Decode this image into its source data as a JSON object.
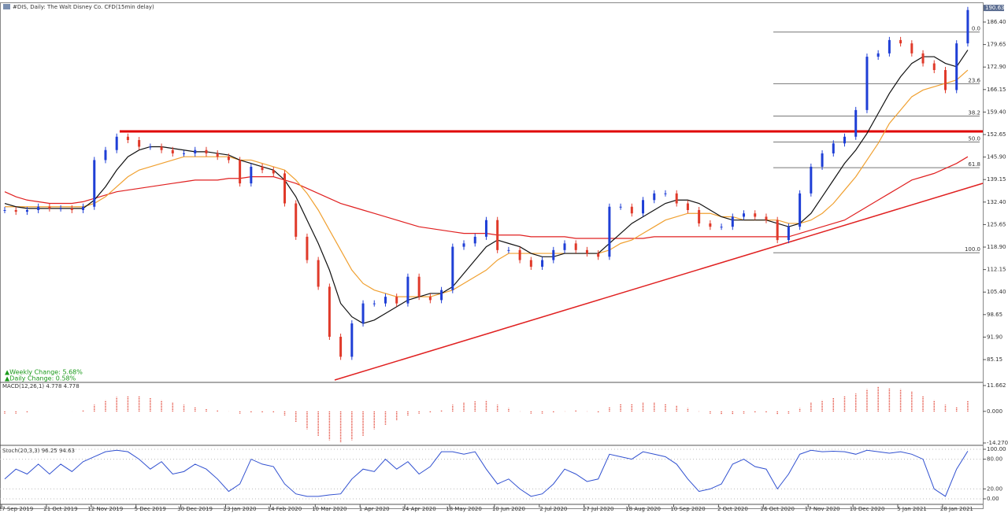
{
  "chart_data": {
    "type": "candlestick",
    "title": "#DIS, Daily: The Walt Disney Co. CFD(15min delay)",
    "last_price": {
      "value": 190.63,
      "label": "190.63"
    },
    "weekly_change": "▲Weekly Change: 5.68%",
    "daily_change": "▲Daily Change: 0.58%",
    "up_color": "#1f3fd6",
    "down_color": "#e03a2a",
    "x_labels": [
      "27 Sep 2019",
      "21 Oct 2019",
      "12 Nov 2019",
      "5 Dec 2019",
      "30 Dec 2019",
      "23 Jan 2020",
      "14 Feb 2020",
      "10 Mar 2020",
      "1 Apr 2020",
      "24 Apr 2020",
      "18 May 2020",
      "10 Jun 2020",
      "2 Jul 2020",
      "27 Jul 2020",
      "18 Aug 2020",
      "10 Sep 2020",
      "2 Oct 2020",
      "26 Oct 2020",
      "17 Nov 2020",
      "10 Dec 2020",
      "5 Jan 2021",
      "28 Jan 2021"
    ],
    "close": [
      130,
      129.5,
      130,
      131,
      130.5,
      130.5,
      130,
      131,
      145,
      148,
      152,
      151,
      149,
      149,
      148,
      147,
      147,
      148,
      147,
      146,
      145,
      138,
      143,
      142,
      141,
      132,
      122,
      115,
      107,
      92,
      86,
      96,
      102,
      102,
      104,
      102,
      110,
      104,
      103,
      106,
      119,
      120,
      122,
      127,
      118,
      118,
      115,
      113,
      115,
      118,
      120,
      118,
      117,
      116,
      131,
      131,
      129,
      133,
      135,
      135,
      132,
      130,
      126,
      125,
      125,
      128,
      129,
      128,
      127,
      121,
      125,
      135,
      143,
      147,
      150,
      152,
      160,
      176,
      177,
      181,
      180,
      177,
      174,
      172,
      166,
      180,
      190
    ],
    "series": [
      {
        "name": "MA slow",
        "color": "#e02020",
        "values": [
          135.5,
          134,
          133,
          132.5,
          132,
          132,
          132,
          132.5,
          133.5,
          134.5,
          135.5,
          136,
          136.5,
          137,
          137.5,
          138,
          138.5,
          139,
          139,
          139,
          139.5,
          139.5,
          140,
          140,
          140,
          139,
          138,
          136.5,
          135,
          133.5,
          132,
          131,
          130,
          129,
          128,
          127,
          126,
          125,
          124.5,
          124,
          123.5,
          123,
          123,
          123,
          122.5,
          122.5,
          122.5,
          122,
          122,
          122,
          122,
          121.5,
          121.5,
          121.5,
          121.5,
          121.5,
          121.5,
          121.5,
          122,
          122,
          122,
          122,
          122,
          122,
          122,
          122,
          122,
          122,
          122,
          122,
          122,
          123,
          124,
          125,
          126,
          127,
          129,
          131,
          133,
          135,
          137,
          139,
          140,
          141,
          142.5,
          144,
          146
        ]
      },
      {
        "name": "MA mid",
        "color": "#f0a030",
        "values": [
          131,
          131,
          131,
          131,
          131,
          131,
          131,
          131,
          132,
          134,
          137,
          140,
          142,
          143,
          144,
          145,
          146,
          146,
          146,
          146,
          146,
          145,
          145,
          144,
          143,
          142,
          139,
          135,
          130,
          124,
          118,
          112,
          108,
          106,
          105,
          104,
          104,
          104,
          104,
          105,
          106,
          108,
          110,
          112,
          115,
          117,
          117,
          117,
          117,
          117,
          117,
          117,
          117,
          117,
          118,
          120,
          121,
          123,
          125,
          127,
          128,
          129,
          129,
          129,
          128,
          128,
          127,
          127,
          127,
          127,
          126,
          126,
          127,
          129,
          132,
          136,
          140,
          145,
          150,
          156,
          160,
          164,
          166,
          167,
          168,
          169,
          172
        ]
      },
      {
        "name": "MA fast",
        "color": "#111111",
        "values": [
          132,
          131,
          130.5,
          130.5,
          130.5,
          130.5,
          130.5,
          130.5,
          133,
          137,
          142,
          146,
          148,
          149,
          149,
          148.5,
          148,
          147.5,
          147.5,
          147,
          146.5,
          145,
          144,
          143,
          142,
          139,
          134,
          127,
          120,
          112,
          102,
          98,
          96,
          97,
          99,
          101,
          103,
          104,
          105,
          105,
          107,
          111,
          115,
          119,
          121,
          120,
          119,
          117,
          116,
          116,
          117,
          117,
          117,
          117,
          120,
          123,
          126,
          128,
          130,
          132,
          133,
          133,
          132,
          130,
          128,
          127,
          127,
          127,
          127,
          126,
          125,
          126,
          129,
          134,
          139,
          144,
          148,
          153,
          159,
          165,
          170,
          174,
          176,
          176,
          174,
          173,
          178
        ]
      }
    ],
    "ylim": [
      78.55,
      190.65
    ],
    "yticks": [
      {
        "value": 186.4,
        "label": "186.40"
      },
      {
        "value": 179.65,
        "label": "179.65"
      },
      {
        "value": 172.9,
        "label": "172.90"
      },
      {
        "value": 166.15,
        "label": "166.15"
      },
      {
        "value": 159.4,
        "label": "159.40"
      },
      {
        "value": 152.65,
        "label": "152.65"
      },
      {
        "value": 145.9,
        "label": "145.90"
      },
      {
        "value": 139.15,
        "label": "139.15"
      },
      {
        "value": 132.4,
        "label": "132.40"
      },
      {
        "value": 125.65,
        "label": "125.65"
      },
      {
        "value": 118.9,
        "label": "118.90"
      },
      {
        "value": 112.15,
        "label": "112.15"
      },
      {
        "value": 105.4,
        "label": "105.40"
      },
      {
        "value": 98.65,
        "label": "98.65"
      },
      {
        "value": 91.9,
        "label": "91.90"
      },
      {
        "value": 85.15,
        "label": "85.15"
      }
    ],
    "fibonacci": [
      {
        "label": "0.0",
        "price": 183.4
      },
      {
        "label": "23.6",
        "price": 167.9
      },
      {
        "label": "38.2",
        "price": 158.2
      },
      {
        "label": "50.0",
        "price": 150.4
      },
      {
        "label": "61.8",
        "price": 142.7
      },
      {
        "label": "100.0",
        "price": 117.2
      }
    ],
    "macd": {
      "title": "MACD(12,26,1) 4.778 4.778",
      "color": "#e03a2a",
      "values": [
        -1,
        -1,
        -0.5,
        0,
        0,
        0,
        0,
        0.5,
        3,
        5,
        6.5,
        7,
        7,
        6,
        5,
        4,
        3,
        2,
        1,
        0.5,
        0,
        -1,
        -0.5,
        -0.5,
        -0.5,
        -2,
        -5,
        -8,
        -11,
        -13,
        -14,
        -13,
        -11,
        -8,
        -6,
        -4,
        -2,
        -1,
        -0.5,
        0.5,
        3,
        4,
        4.5,
        5,
        3,
        1.5,
        0,
        -1,
        -1,
        -0.5,
        0,
        0.5,
        0,
        -0.5,
        2,
        3.5,
        3.5,
        4,
        4,
        3.5,
        2.5,
        1.5,
        0,
        -1,
        -1.5,
        -1.5,
        -1,
        -0.5,
        -0.5,
        -1.5,
        -1,
        1.5,
        4,
        5,
        6,
        7,
        8,
        10,
        11,
        10.5,
        10,
        9,
        7,
        5,
        3,
        2,
        4.778
      ],
      "ylim": [
        -14.27,
        11.662
      ],
      "yticks": [
        11.662,
        {
          "value": 0,
          "label": "0.000"
        },
        {
          "value": -14.27,
          "label": "-14.270"
        }
      ]
    },
    "stoch": {
      "title": "Stoch(20,3,3) 96.25 94.63",
      "color": "#3050d0",
      "values": [
        40,
        60,
        50,
        70,
        50,
        70,
        55,
        75,
        85,
        95,
        98,
        95,
        80,
        60,
        75,
        50,
        55,
        70,
        60,
        40,
        15,
        30,
        80,
        70,
        65,
        30,
        10,
        5,
        5,
        8,
        10,
        40,
        60,
        55,
        80,
        60,
        75,
        50,
        65,
        95,
        95,
        90,
        95,
        60,
        30,
        40,
        20,
        5,
        10,
        30,
        60,
        50,
        35,
        40,
        90,
        85,
        80,
        95,
        90,
        85,
        70,
        40,
        15,
        20,
        30,
        70,
        80,
        65,
        60,
        20,
        50,
        90,
        98,
        95,
        96,
        95,
        90,
        98,
        95,
        92,
        95,
        90,
        80,
        20,
        5,
        60,
        96.25
      ],
      "ylim": [
        0,
        100
      ],
      "yticks": [
        {
          "value": 100,
          "label": "100.00"
        },
        {
          "value": 80,
          "label": "80.00"
        },
        {
          "value": 20,
          "label": "20.00"
        },
        {
          "value": 0,
          "label": "0.00"
        }
      ]
    }
  }
}
